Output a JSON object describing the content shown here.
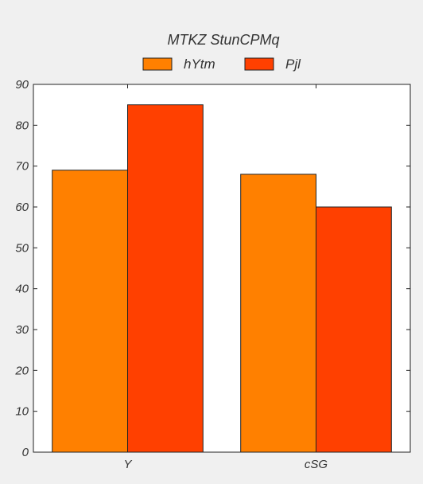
{
  "chart_data": {
    "type": "bar",
    "title": "MTKZ StunCPMq",
    "xlabel": "",
    "ylabel": "",
    "categories": [
      "Y",
      "cSG"
    ],
    "series": [
      {
        "name": "hYtm",
        "values": [
          69,
          68
        ],
        "color": "#ff8000"
      },
      {
        "name": "Pjl",
        "values": [
          85,
          60
        ],
        "color": "#ff4000"
      }
    ],
    "ylim": [
      0,
      90
    ],
    "yticks": [
      0,
      10,
      20,
      30,
      40,
      50,
      60,
      70,
      80,
      90
    ],
    "grid": false,
    "legend_position": "top-center"
  }
}
